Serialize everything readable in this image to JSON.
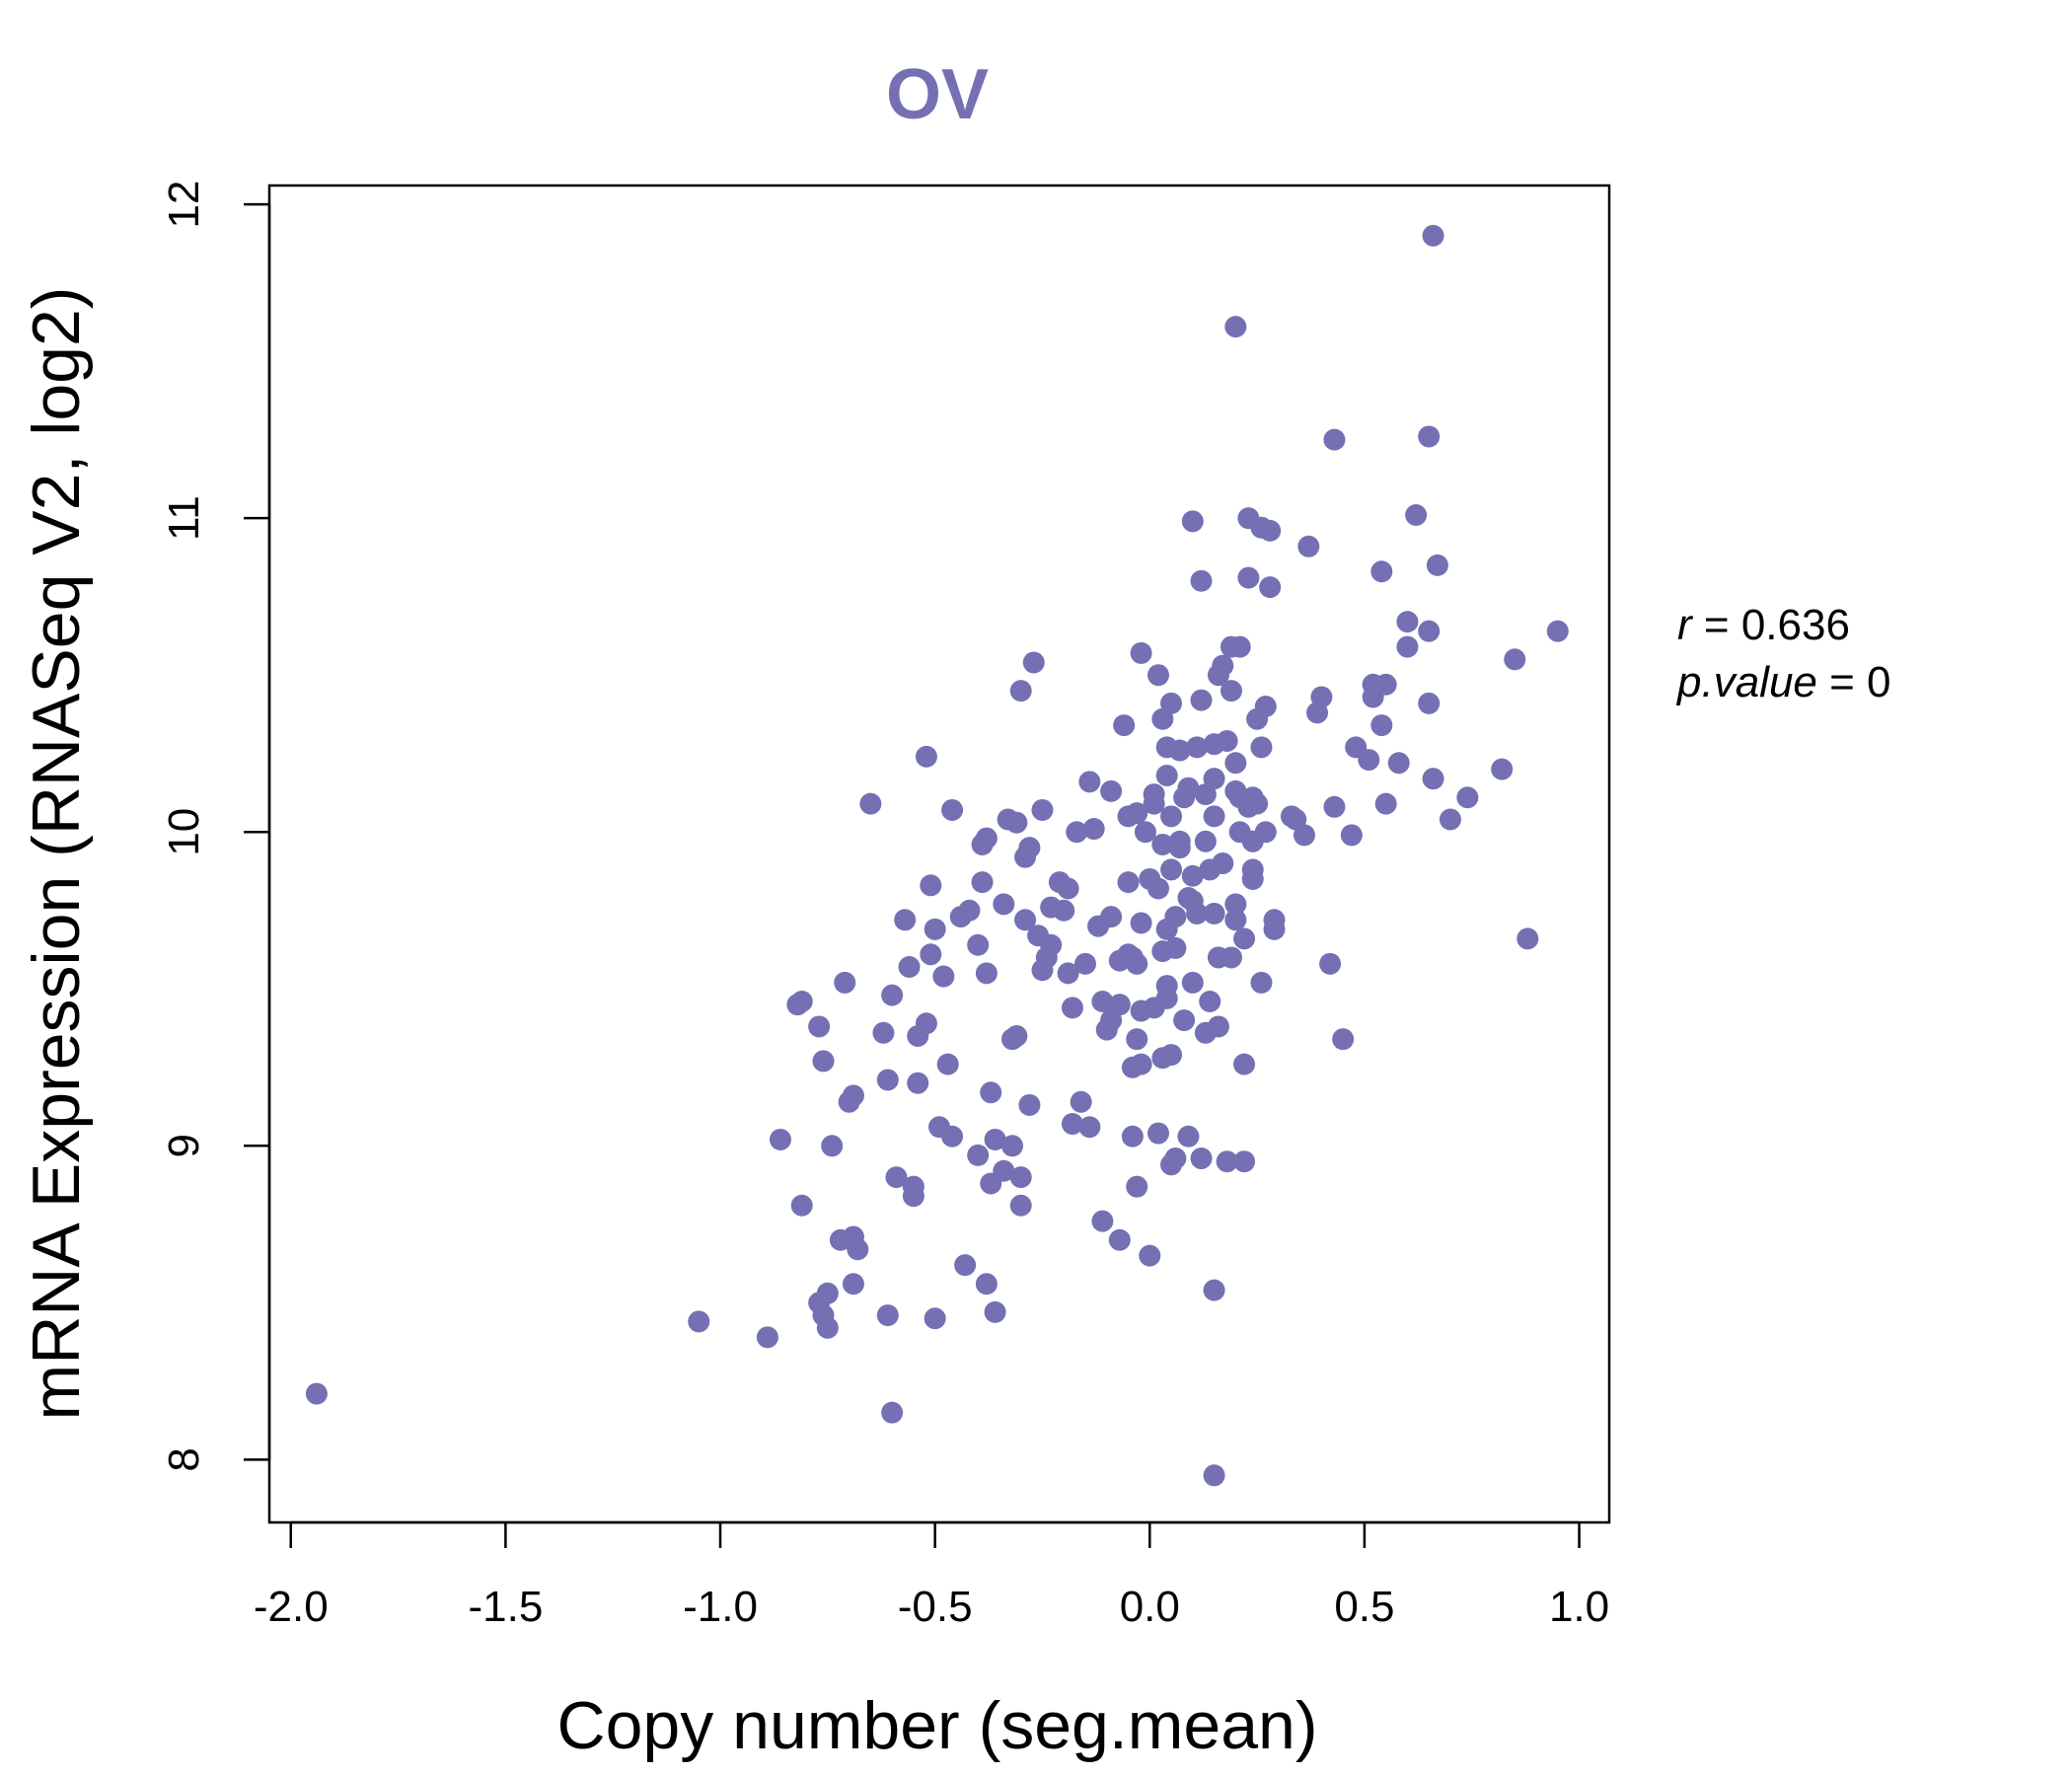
{
  "chart_data": {
    "type": "scatter",
    "title": "OV",
    "title_color": "#7570B3",
    "point_color": "#7570B3",
    "xlabel": "Copy number (seg.mean)",
    "ylabel": "mRNA Expression (RNASeq V2, log2)",
    "xlim": [
      -2.05,
      1.07
    ],
    "ylim": [
      7.8,
      12.06
    ],
    "xticks": [
      -2.0,
      -1.5,
      -1.0,
      -0.5,
      0.0,
      0.5,
      1.0
    ],
    "xtick_labels": [
      "-2.0",
      "-1.5",
      "-1.0",
      "-0.5",
      "0.0",
      "0.5",
      "1.0"
    ],
    "yticks": [
      8,
      9,
      10,
      11,
      12
    ],
    "ytick_labels": [
      "8",
      "9",
      "10",
      "11",
      "12"
    ],
    "annotation": {
      "r_label": "r",
      "r_value": "0.636",
      "p_label": "p.value",
      "p_value": "0"
    },
    "points": [
      [
        -1.94,
        8.21
      ],
      [
        -1.05,
        8.44
      ],
      [
        -0.89,
        8.39
      ],
      [
        -0.86,
        9.02
      ],
      [
        -0.82,
        9.45
      ],
      [
        -0.81,
        9.46
      ],
      [
        -0.81,
        8.81
      ],
      [
        -0.77,
        9.38
      ],
      [
        -0.77,
        8.5
      ],
      [
        -0.76,
        8.46
      ],
      [
        -0.76,
        9.27
      ],
      [
        -0.75,
        8.42
      ],
      [
        -0.75,
        8.53
      ],
      [
        -0.74,
        9.0
      ],
      [
        -0.72,
        8.7
      ],
      [
        -0.71,
        9.52
      ],
      [
        -0.7,
        9.14
      ],
      [
        -0.69,
        9.16
      ],
      [
        -0.69,
        8.56
      ],
      [
        -0.69,
        8.71
      ],
      [
        -0.68,
        8.67
      ],
      [
        -0.65,
        10.09
      ],
      [
        -0.62,
        9.36
      ],
      [
        -0.61,
        9.21
      ],
      [
        -0.61,
        8.46
      ],
      [
        -0.6,
        8.15
      ],
      [
        -0.6,
        9.48
      ],
      [
        -0.59,
        8.9
      ],
      [
        -0.57,
        9.72
      ],
      [
        -0.56,
        9.57
      ],
      [
        -0.55,
        8.84
      ],
      [
        -0.55,
        8.87
      ],
      [
        -0.54,
        9.2
      ],
      [
        -0.54,
        9.35
      ],
      [
        -0.52,
        10.24
      ],
      [
        -0.52,
        9.39
      ],
      [
        -0.51,
        9.83
      ],
      [
        -0.51,
        9.61
      ],
      [
        -0.5,
        9.69
      ],
      [
        -0.5,
        8.45
      ],
      [
        -0.49,
        9.06
      ],
      [
        -0.48,
        9.54
      ],
      [
        -0.47,
        9.26
      ],
      [
        -0.46,
        10.07
      ],
      [
        -0.46,
        9.03
      ],
      [
        -0.44,
        9.73
      ],
      [
        -0.43,
        8.62
      ],
      [
        -0.42,
        9.75
      ],
      [
        -0.4,
        9.64
      ],
      [
        -0.4,
        8.97
      ],
      [
        -0.39,
        9.84
      ],
      [
        -0.39,
        9.96
      ],
      [
        -0.38,
        9.98
      ],
      [
        -0.38,
        8.56
      ],
      [
        -0.38,
        9.55
      ],
      [
        -0.37,
        8.88
      ],
      [
        -0.37,
        9.17
      ],
      [
        -0.36,
        8.47
      ],
      [
        -0.36,
        9.02
      ],
      [
        -0.34,
        8.92
      ],
      [
        -0.34,
        9.77
      ],
      [
        -0.33,
        10.04
      ],
      [
        -0.32,
        9.34
      ],
      [
        -0.32,
        9.0
      ],
      [
        -0.31,
        9.35
      ],
      [
        -0.31,
        10.03
      ],
      [
        -0.3,
        8.9
      ],
      [
        -0.3,
        8.81
      ],
      [
        -0.3,
        10.45
      ],
      [
        -0.29,
        9.72
      ],
      [
        -0.29,
        9.92
      ],
      [
        -0.28,
        9.95
      ],
      [
        -0.28,
        9.13
      ],
      [
        -0.27,
        10.54
      ],
      [
        -0.26,
        9.67
      ],
      [
        -0.25,
        10.07
      ],
      [
        -0.25,
        9.56
      ],
      [
        -0.24,
        9.6
      ],
      [
        -0.23,
        9.76
      ],
      [
        -0.23,
        9.64
      ],
      [
        -0.21,
        9.84
      ],
      [
        -0.2,
        9.75
      ],
      [
        -0.19,
        9.55
      ],
      [
        -0.19,
        9.82
      ],
      [
        -0.18,
        9.44
      ],
      [
        -0.18,
        9.07
      ],
      [
        -0.17,
        10.0
      ],
      [
        -0.16,
        9.14
      ],
      [
        -0.15,
        9.58
      ],
      [
        -0.14,
        10.16
      ],
      [
        -0.14,
        9.06
      ],
      [
        -0.13,
        10.01
      ],
      [
        -0.12,
        9.7
      ],
      [
        -0.11,
        8.76
      ],
      [
        -0.11,
        9.46
      ],
      [
        -0.1,
        9.37
      ],
      [
        -0.09,
        10.13
      ],
      [
        -0.09,
        9.73
      ],
      [
        -0.09,
        9.4
      ],
      [
        -0.07,
        9.59
      ],
      [
        -0.07,
        8.7
      ],
      [
        -0.07,
        9.45
      ],
      [
        -0.06,
        10.34
      ],
      [
        -0.05,
        9.84
      ],
      [
        -0.05,
        9.61
      ],
      [
        -0.05,
        10.05
      ],
      [
        -0.04,
        9.25
      ],
      [
        -0.04,
        9.6
      ],
      [
        -0.04,
        9.03
      ],
      [
        -0.03,
        10.06
      ],
      [
        -0.03,
        9.34
      ],
      [
        -0.03,
        9.58
      ],
      [
        -0.03,
        8.87
      ],
      [
        -0.02,
        9.26
      ],
      [
        -0.02,
        10.57
      ],
      [
        -0.02,
        9.71
      ],
      [
        -0.02,
        9.43
      ],
      [
        -0.01,
        10.0
      ],
      [
        0.0,
        9.85
      ],
      [
        0.0,
        8.65
      ],
      [
        0.01,
        10.09
      ],
      [
        0.01,
        9.44
      ],
      [
        0.01,
        10.12
      ],
      [
        0.02,
        9.82
      ],
      [
        0.02,
        9.04
      ],
      [
        0.02,
        10.5
      ],
      [
        0.03,
        9.62
      ],
      [
        0.03,
        9.28
      ],
      [
        0.03,
        10.36
      ],
      [
        0.03,
        9.96
      ],
      [
        0.04,
        10.27
      ],
      [
        0.04,
        9.69
      ],
      [
        0.04,
        9.51
      ],
      [
        0.04,
        10.18
      ],
      [
        0.04,
        9.47
      ],
      [
        0.05,
        9.88
      ],
      [
        0.05,
        10.05
      ],
      [
        0.05,
        9.29
      ],
      [
        0.05,
        10.41
      ],
      [
        0.05,
        8.94
      ],
      [
        0.06,
        9.63
      ],
      [
        0.06,
        9.73
      ],
      [
        0.06,
        8.96
      ],
      [
        0.07,
        9.97
      ],
      [
        0.07,
        10.26
      ],
      [
        0.07,
        9.95
      ],
      [
        0.08,
        10.11
      ],
      [
        0.08,
        9.4
      ],
      [
        0.09,
        10.14
      ],
      [
        0.09,
        9.03
      ],
      [
        0.09,
        9.79
      ],
      [
        0.1,
        10.99
      ],
      [
        0.1,
        9.52
      ],
      [
        0.1,
        9.78
      ],
      [
        0.1,
        9.86
      ],
      [
        0.11,
        9.74
      ],
      [
        0.11,
        10.27
      ],
      [
        0.12,
        10.42
      ],
      [
        0.12,
        8.96
      ],
      [
        0.12,
        10.8
      ],
      [
        0.13,
        9.36
      ],
      [
        0.13,
        10.12
      ],
      [
        0.13,
        9.97
      ],
      [
        0.14,
        9.46
      ],
      [
        0.14,
        9.88
      ],
      [
        0.15,
        9.74
      ],
      [
        0.15,
        10.05
      ],
      [
        0.15,
        10.28
      ],
      [
        0.15,
        10.17
      ],
      [
        0.15,
        8.54
      ],
      [
        0.15,
        7.95
      ],
      [
        0.16,
        9.38
      ],
      [
        0.16,
        10.5
      ],
      [
        0.16,
        9.6
      ],
      [
        0.17,
        10.53
      ],
      [
        0.17,
        9.9
      ],
      [
        0.18,
        10.29
      ],
      [
        0.18,
        8.95
      ],
      [
        0.19,
        10.45
      ],
      [
        0.19,
        10.59
      ],
      [
        0.19,
        9.6
      ],
      [
        0.2,
        10.13
      ],
      [
        0.2,
        9.72
      ],
      [
        0.2,
        10.22
      ],
      [
        0.2,
        11.61
      ],
      [
        0.2,
        9.77
      ],
      [
        0.21,
        10.0
      ],
      [
        0.21,
        10.59
      ],
      [
        0.21,
        10.11
      ],
      [
        0.22,
        9.26
      ],
      [
        0.22,
        9.66
      ],
      [
        0.22,
        8.95
      ],
      [
        0.23,
        10.08
      ],
      [
        0.23,
        11.0
      ],
      [
        0.23,
        10.81
      ],
      [
        0.24,
        9.88
      ],
      [
        0.24,
        9.97
      ],
      [
        0.24,
        9.85
      ],
      [
        0.24,
        10.11
      ],
      [
        0.25,
        10.36
      ],
      [
        0.25,
        10.09
      ],
      [
        0.26,
        10.27
      ],
      [
        0.26,
        10.97
      ],
      [
        0.26,
        9.52
      ],
      [
        0.27,
        10.0
      ],
      [
        0.27,
        10.4
      ],
      [
        0.28,
        10.78
      ],
      [
        0.28,
        10.96
      ],
      [
        0.29,
        9.72
      ],
      [
        0.29,
        9.69
      ],
      [
        0.33,
        10.05
      ],
      [
        0.34,
        10.04
      ],
      [
        0.36,
        9.99
      ],
      [
        0.37,
        10.91
      ],
      [
        0.39,
        10.38
      ],
      [
        0.4,
        10.43
      ],
      [
        0.42,
        9.58
      ],
      [
        0.43,
        11.25
      ],
      [
        0.43,
        10.08
      ],
      [
        0.45,
        9.34
      ],
      [
        0.47,
        9.99
      ],
      [
        0.48,
        10.27
      ],
      [
        0.51,
        10.23
      ],
      [
        0.52,
        10.47
      ],
      [
        0.52,
        10.43
      ],
      [
        0.54,
        10.83
      ],
      [
        0.54,
        10.34
      ],
      [
        0.55,
        10.47
      ],
      [
        0.55,
        10.09
      ],
      [
        0.58,
        10.22
      ],
      [
        0.6,
        10.59
      ],
      [
        0.6,
        10.67
      ],
      [
        0.62,
        11.01
      ],
      [
        0.65,
        11.26
      ],
      [
        0.65,
        10.41
      ],
      [
        0.65,
        10.64
      ],
      [
        0.66,
        10.17
      ],
      [
        0.66,
        11.9
      ],
      [
        0.67,
        10.85
      ],
      [
        0.7,
        10.04
      ],
      [
        0.74,
        10.11
      ],
      [
        0.82,
        10.2
      ],
      [
        0.85,
        10.55
      ],
      [
        0.88,
        9.66
      ],
      [
        0.95,
        10.64
      ]
    ]
  }
}
